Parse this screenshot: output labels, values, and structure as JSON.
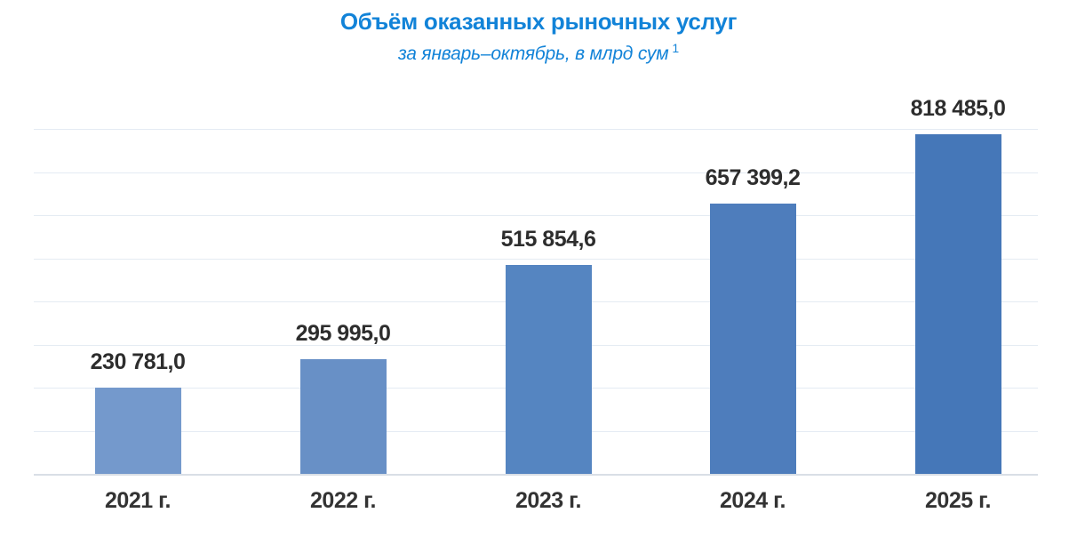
{
  "header": {
    "title": "Объём оказанных рыночных услуг",
    "subtitle": "за январь–октябрь, в млрд сум",
    "footnote_marker": "1"
  },
  "chart_data": {
    "type": "bar",
    "title": "Объём оказанных рыночных услуг",
    "subtitle": "за январь–октябрь, в млрд сум ¹",
    "unit": "млрд сум",
    "categories": [
      "2021 г.",
      "2022 г.",
      "2023 г.",
      "2024 г.",
      "2025 г."
    ],
    "values": [
      230781.0,
      295995.0,
      515854.6,
      657399.2,
      818485.0
    ],
    "value_labels": [
      "230 781,0",
      "295 995,0",
      "515 854,6",
      "657 399,2",
      "818 485,0"
    ],
    "bar_colors": [
      "#7499cc",
      "#6890c6",
      "#5585c1",
      "#4e7dbc",
      "#4577b8"
    ],
    "xlabel": "",
    "ylabel": "",
    "ylim": [
      0,
      830000
    ],
    "grid": "horizontal",
    "gridline_count": 8,
    "legend": "none",
    "value_labels_position": "above-bars"
  },
  "colors": {
    "title": "#1283d8",
    "value_label": "#2d2d2d",
    "axis_label": "#333333",
    "gridline": "#e4ebf3",
    "baseline": "#d9dfe6",
    "background": "#ffffff"
  }
}
